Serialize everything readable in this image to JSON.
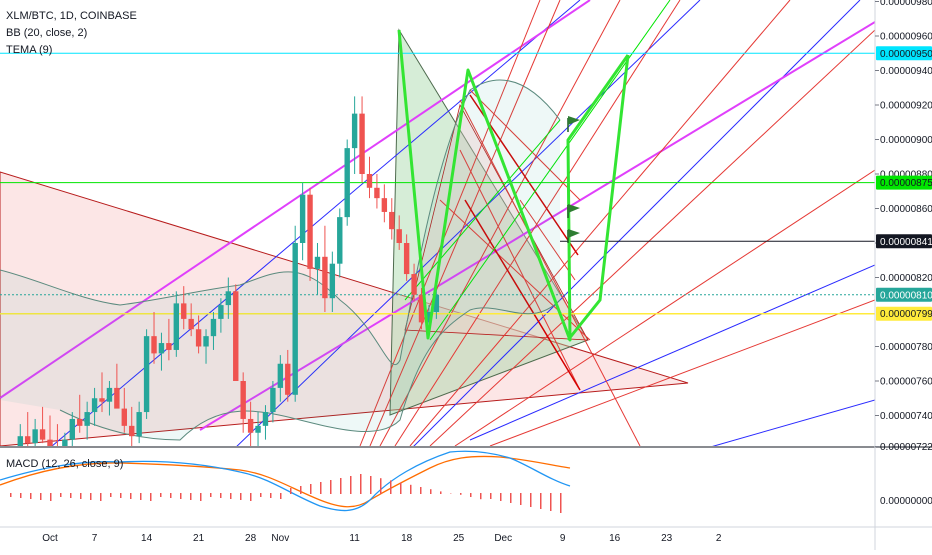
{
  "header": {
    "symbol_line": "XLM/BTC, 1D, COINBASE",
    "bb_label": "BB (20, close, 2)",
    "tema_label": "TEMA (9)",
    "macd_label": "MACD (12, 26, close, 9)"
  },
  "colors": {
    "up": "#26a69a",
    "down": "#ef5350",
    "magenta": "#e040fb",
    "cyan_line": "#00e5ff",
    "green_line": "#00e600",
    "yellow_line": "#ffeb3b",
    "black_line": "#131722",
    "pattern_green": "#33e533",
    "macd_line": "#2196f3",
    "signal_line": "#ff6d00",
    "hist": "#ef5350"
  },
  "chart_data": {
    "type": "candlestick",
    "y_axis_ticks": [
      "0.00000980",
      "0.00000960",
      "0.00000940",
      "0.00000920",
      "0.00000900",
      "0.00000880",
      "0.00000860",
      "0.00000840",
      "0.00000820",
      "0.00000780",
      "0.00000760",
      "0.00000740",
      "0.00000722"
    ],
    "y_axis_tick_values": [
      980,
      960,
      940,
      920,
      900,
      880,
      860,
      840,
      820,
      780,
      760,
      740,
      722
    ],
    "price_markers": [
      {
        "label": "0.00000950",
        "value": 950,
        "bg": "#00e5ff",
        "fg": "#131722"
      },
      {
        "label": "0.00000875",
        "value": 875,
        "bg": "#00e600",
        "fg": "#131722"
      },
      {
        "label": "0.00000841",
        "value": 841,
        "bg": "#131722",
        "fg": "#ffffff"
      },
      {
        "label": "0.00000810",
        "value": 810,
        "bg": "#26a69a",
        "fg": "#ffffff"
      },
      {
        "label": "0.00000799",
        "value": 799,
        "bg": "#ffeb3b",
        "fg": "#131722"
      }
    ],
    "x_axis_ticks": [
      {
        "label": "Oct",
        "day": 0
      },
      {
        "label": "7",
        "day": 6
      },
      {
        "label": "14",
        "day": 13
      },
      {
        "label": "21",
        "day": 20
      },
      {
        "label": "28",
        "day": 27
      },
      {
        "label": "Nov",
        "day": 31
      },
      {
        "label": "11",
        "day": 41
      },
      {
        "label": "18",
        "day": 48
      },
      {
        "label": "25",
        "day": 55
      },
      {
        "label": "Dec",
        "day": 61
      },
      {
        "label": "9",
        "day": 69
      },
      {
        "label": "16",
        "day": 76
      },
      {
        "label": "23",
        "day": 83
      },
      {
        "label": "2",
        "day": 90
      }
    ],
    "candles": [
      {
        "day": -4,
        "o": 722,
        "h": 735,
        "l": 712,
        "c": 728
      },
      {
        "day": -3,
        "o": 728,
        "h": 742,
        "l": 720,
        "c": 724
      },
      {
        "day": -2,
        "o": 724,
        "h": 738,
        "l": 716,
        "c": 732
      },
      {
        "day": -1,
        "o": 732,
        "h": 745,
        "l": 724,
        "c": 726
      },
      {
        "day": 0,
        "o": 726,
        "h": 740,
        "l": 718,
        "c": 722
      },
      {
        "day": 1,
        "o": 722,
        "h": 735,
        "l": 714,
        "c": 718
      },
      {
        "day": 2,
        "o": 718,
        "h": 730,
        "l": 710,
        "c": 726
      },
      {
        "day": 3,
        "o": 726,
        "h": 742,
        "l": 720,
        "c": 738
      },
      {
        "day": 4,
        "o": 738,
        "h": 752,
        "l": 730,
        "c": 734
      },
      {
        "day": 5,
        "o": 734,
        "h": 748,
        "l": 726,
        "c": 742
      },
      {
        "day": 6,
        "o": 742,
        "h": 756,
        "l": 734,
        "c": 750
      },
      {
        "day": 7,
        "o": 750,
        "h": 765,
        "l": 742,
        "c": 748
      },
      {
        "day": 8,
        "o": 748,
        "h": 760,
        "l": 740,
        "c": 756
      },
      {
        "day": 9,
        "o": 756,
        "h": 770,
        "l": 746,
        "c": 744
      },
      {
        "day": 10,
        "o": 744,
        "h": 756,
        "l": 730,
        "c": 734
      },
      {
        "day": 11,
        "o": 734,
        "h": 745,
        "l": 722,
        "c": 728
      },
      {
        "day": 12,
        "o": 728,
        "h": 748,
        "l": 724,
        "c": 742
      },
      {
        "day": 13,
        "o": 742,
        "h": 790,
        "l": 738,
        "c": 786
      },
      {
        "day": 14,
        "o": 786,
        "h": 800,
        "l": 770,
        "c": 776
      },
      {
        "day": 15,
        "o": 776,
        "h": 788,
        "l": 766,
        "c": 782
      },
      {
        "day": 16,
        "o": 782,
        "h": 796,
        "l": 772,
        "c": 778
      },
      {
        "day": 17,
        "o": 778,
        "h": 812,
        "l": 774,
        "c": 805
      },
      {
        "day": 18,
        "o": 805,
        "h": 815,
        "l": 790,
        "c": 796
      },
      {
        "day": 19,
        "o": 796,
        "h": 805,
        "l": 786,
        "c": 790
      },
      {
        "day": 20,
        "o": 790,
        "h": 798,
        "l": 776,
        "c": 780
      },
      {
        "day": 21,
        "o": 780,
        "h": 790,
        "l": 770,
        "c": 786
      },
      {
        "day": 22,
        "o": 786,
        "h": 800,
        "l": 778,
        "c": 796
      },
      {
        "day": 23,
        "o": 796,
        "h": 808,
        "l": 788,
        "c": 804
      },
      {
        "day": 24,
        "o": 804,
        "h": 820,
        "l": 796,
        "c": 812
      },
      {
        "day": 25,
        "o": 812,
        "h": 816,
        "l": 760,
        "c": 760
      },
      {
        "day": 26,
        "o": 760,
        "h": 765,
        "l": 730,
        "c": 738
      },
      {
        "day": 27,
        "o": 738,
        "h": 748,
        "l": 722,
        "c": 730
      },
      {
        "day": 28,
        "o": 730,
        "h": 742,
        "l": 720,
        "c": 734
      },
      {
        "day": 29,
        "o": 734,
        "h": 746,
        "l": 726,
        "c": 742
      },
      {
        "day": 30,
        "o": 742,
        "h": 760,
        "l": 736,
        "c": 756
      },
      {
        "day": 31,
        "o": 756,
        "h": 775,
        "l": 748,
        "c": 770
      },
      {
        "day": 32,
        "o": 770,
        "h": 778,
        "l": 748,
        "c": 752
      },
      {
        "day": 33,
        "o": 752,
        "h": 850,
        "l": 748,
        "c": 840
      },
      {
        "day": 34,
        "o": 840,
        "h": 875,
        "l": 830,
        "c": 868
      },
      {
        "day": 35,
        "o": 868,
        "h": 872,
        "l": 818,
        "c": 825
      },
      {
        "day": 36,
        "o": 825,
        "h": 840,
        "l": 810,
        "c": 832
      },
      {
        "day": 37,
        "o": 832,
        "h": 850,
        "l": 800,
        "c": 808
      },
      {
        "day": 38,
        "o": 808,
        "h": 835,
        "l": 800,
        "c": 828
      },
      {
        "day": 39,
        "o": 828,
        "h": 860,
        "l": 820,
        "c": 855
      },
      {
        "day": 40,
        "o": 855,
        "h": 900,
        "l": 850,
        "c": 895
      },
      {
        "day": 41,
        "o": 895,
        "h": 925,
        "l": 880,
        "c": 915
      },
      {
        "day": 42,
        "o": 915,
        "h": 925,
        "l": 875,
        "c": 880
      },
      {
        "day": 43,
        "o": 880,
        "h": 890,
        "l": 866,
        "c": 872
      },
      {
        "day": 44,
        "o": 872,
        "h": 880,
        "l": 860,
        "c": 866
      },
      {
        "day": 45,
        "o": 866,
        "h": 874,
        "l": 852,
        "c": 858
      },
      {
        "day": 46,
        "o": 858,
        "h": 866,
        "l": 842,
        "c": 848
      },
      {
        "day": 47,
        "o": 848,
        "h": 856,
        "l": 836,
        "c": 840
      },
      {
        "day": 48,
        "o": 840,
        "h": 845,
        "l": 818,
        "c": 822
      },
      {
        "day": 49,
        "o": 822,
        "h": 828,
        "l": 806,
        "c": 810
      },
      {
        "day": 50,
        "o": 810,
        "h": 814,
        "l": 790,
        "c": 794
      },
      {
        "day": 51,
        "o": 794,
        "h": 804,
        "l": 788,
        "c": 800
      },
      {
        "day": 52,
        "o": 800,
        "h": 816,
        "l": 796,
        "c": 810
      }
    ],
    "macd_axis_label": "0.00000000"
  }
}
